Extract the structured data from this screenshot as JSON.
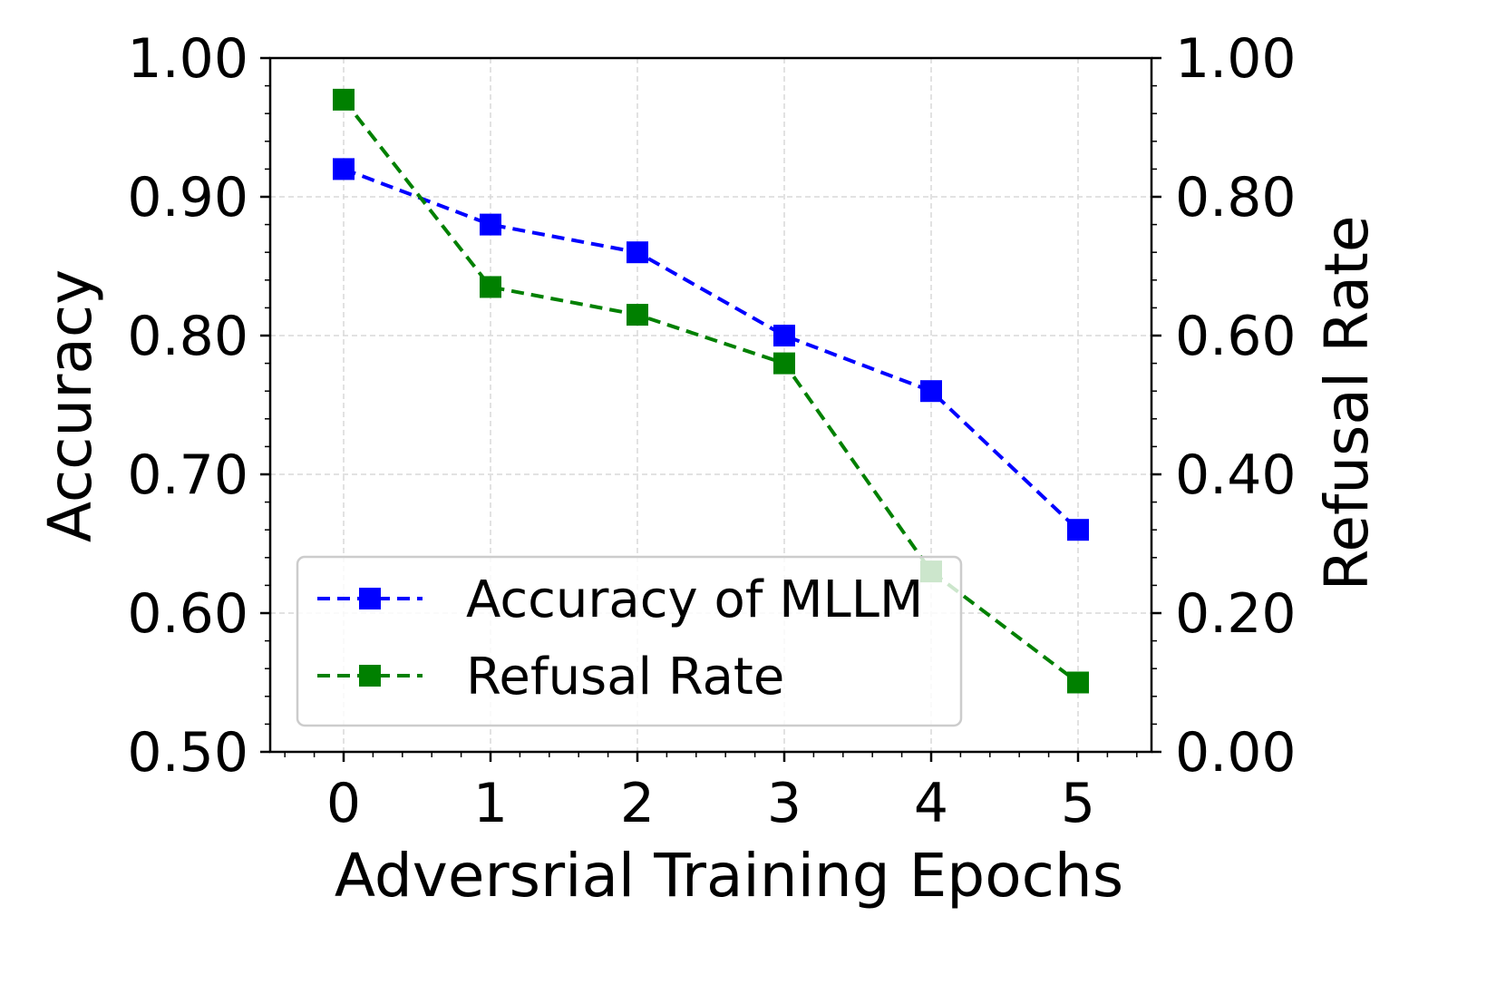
{
  "chart_data": {
    "type": "line",
    "xlabel": "Adversrial Training Epochs",
    "ylabel_left": "Accuracy",
    "ylabel_right": "Refusal Rate",
    "x": [
      0,
      1,
      2,
      3,
      4,
      5
    ],
    "x_ticks": [
      "0",
      "1",
      "2",
      "3",
      "4",
      "5"
    ],
    "xlim": [
      -0.5,
      5.5
    ],
    "ylim_left": [
      0.5,
      1.0
    ],
    "ylim_right": [
      0.0,
      1.0
    ],
    "y_ticks_left": [
      "0.50",
      "0.60",
      "0.70",
      "0.80",
      "0.90",
      "1.00"
    ],
    "y_ticks_right": [
      "0.00",
      "0.20",
      "0.40",
      "0.60",
      "0.80",
      "1.00"
    ],
    "grid": true,
    "legend_position": "lower-left",
    "series": [
      {
        "name": "Accuracy of MLLM",
        "axis": "left",
        "color": "#0000ff",
        "marker": "square",
        "linestyle": "dashed",
        "values": [
          0.92,
          0.88,
          0.86,
          0.8,
          0.76,
          0.66
        ]
      },
      {
        "name": "Refusal Rate",
        "axis": "right",
        "color": "#008000",
        "marker": "square",
        "linestyle": "dashed",
        "values": [
          0.94,
          0.67,
          0.63,
          0.56,
          0.26,
          0.1
        ]
      }
    ]
  }
}
